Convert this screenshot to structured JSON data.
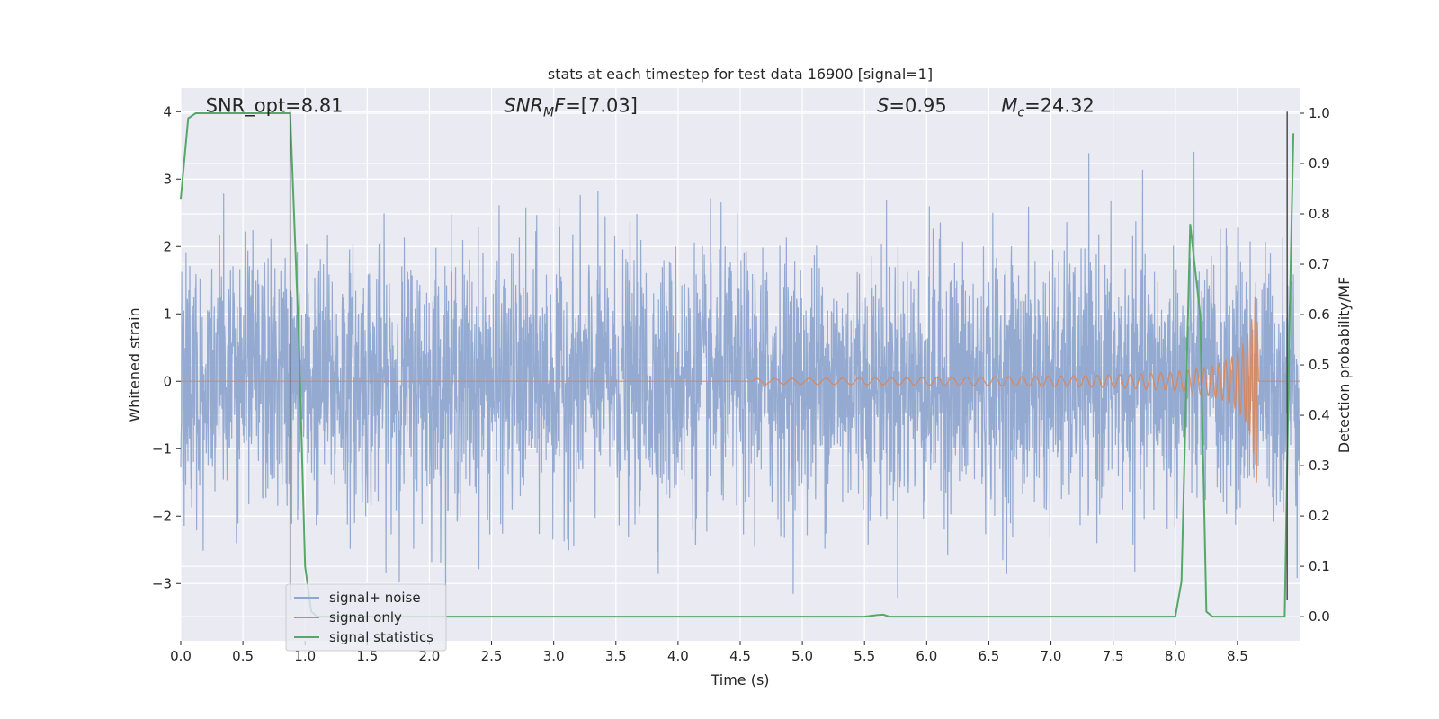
{
  "chart_data": {
    "type": "line",
    "title": "stats at each timestep for test data 16900 [signal=1]",
    "xlabel": "Time (s)",
    "ylabel": "Whitened strain",
    "y2label": "Detection probability/MF",
    "xlim": [
      0.0,
      9.0
    ],
    "ylim": [
      -3.85,
      4.35
    ],
    "y2lim": [
      -0.048,
      1.05
    ],
    "grid": true,
    "legend_position": "lower-left",
    "x_ticks": [
      "0.0",
      "0.5",
      "1.0",
      "1.5",
      "2.0",
      "2.5",
      "3.0",
      "3.5",
      "4.0",
      "4.5",
      "5.0",
      "5.5",
      "6.0",
      "6.5",
      "7.0",
      "7.5",
      "8.0",
      "8.5"
    ],
    "x_tick_values": [
      0.0,
      0.5,
      1.0,
      1.5,
      2.0,
      2.5,
      3.0,
      3.5,
      4.0,
      4.5,
      5.0,
      5.5,
      6.0,
      6.5,
      7.0,
      7.5,
      8.0,
      8.5
    ],
    "y_ticks": [
      "−3",
      "−2",
      "−1",
      "0",
      "1",
      "2",
      "3",
      "4"
    ],
    "y_tick_values": [
      -3,
      -2,
      -1,
      0,
      1,
      2,
      3,
      4
    ],
    "y2_ticks": [
      "0.0",
      "0.1",
      "0.2",
      "0.3",
      "0.4",
      "0.5",
      "0.6",
      "0.7",
      "0.8",
      "0.9",
      "1.0"
    ],
    "y2_tick_values": [
      0.0,
      0.1,
      0.2,
      0.3,
      0.4,
      0.5,
      0.6,
      0.7,
      0.8,
      0.9,
      1.0
    ],
    "annotations": [
      {
        "text": "SNR_opt=8.81",
        "x": 0.2,
        "y": 4.0
      },
      {
        "text": "SNR_MF=[7.03]",
        "x": 2.6,
        "y": 4.0
      },
      {
        "text": "S=0.95",
        "x": 5.6,
        "y": 4.0
      },
      {
        "text": "M_c=24.32",
        "x": 6.6,
        "y": 4.0
      }
    ],
    "vlines": [
      0.88,
      8.9
    ],
    "series": [
      {
        "name": "signal+ noise",
        "color": "#8fa6cf",
        "kind": "noise",
        "typical_envelope": [
          -1.7,
          1.8
        ],
        "extremes": [
          -3.5,
          4.0
        ]
      },
      {
        "name": "signal only",
        "color": "#dd8452",
        "kind": "chirp",
        "start": 4.6,
        "end": 8.66,
        "peak_amplitude": 1.75,
        "baseline": 0.0
      },
      {
        "name": "signal statistics",
        "color": "#55a868",
        "axis": "right",
        "x": [
          0.0,
          0.06,
          0.12,
          0.2,
          0.5,
          0.8,
          0.88,
          0.95,
          1.0,
          1.05,
          1.1,
          5.0,
          5.5,
          5.6,
          5.65,
          5.7,
          6.0,
          7.5,
          8.0,
          8.05,
          8.12,
          8.2,
          8.25,
          8.3,
          8.5,
          8.8,
          8.88,
          8.92,
          8.95
        ],
        "y": [
          0.83,
          0.99,
          1.0,
          1.0,
          1.0,
          1.0,
          1.0,
          0.55,
          0.1,
          0.01,
          0.0,
          0.0,
          0.0,
          0.003,
          0.004,
          0.0,
          0.0,
          0.0,
          0.0,
          0.07,
          0.78,
          0.6,
          0.01,
          0.0,
          0.0,
          0.0,
          0.0,
          0.6,
          0.96
        ]
      }
    ]
  },
  "legend": {
    "items": [
      {
        "label": "signal+ noise",
        "color": "#8fa6cf"
      },
      {
        "label": "signal only",
        "color": "#dd8452"
      },
      {
        "label": "signal statistics",
        "color": "#55a868"
      }
    ]
  }
}
